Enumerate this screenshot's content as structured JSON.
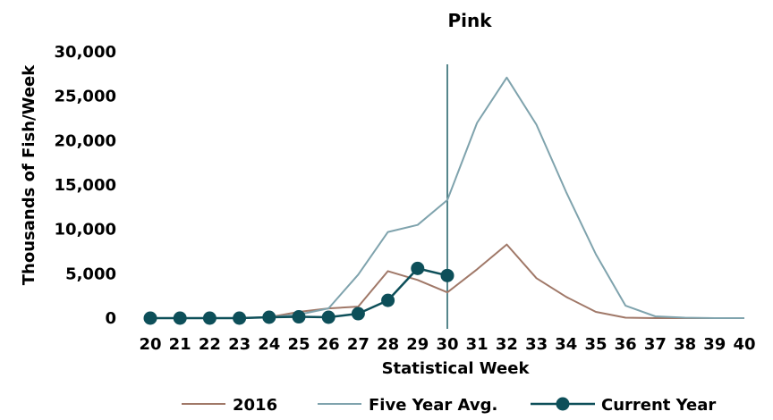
{
  "chart_data": {
    "type": "line",
    "title": "Pink",
    "xlabel": "Statistical Week",
    "ylabel": "Thousands of Fish/Week",
    "x": [
      20,
      21,
      22,
      23,
      24,
      25,
      26,
      27,
      28,
      29,
      30,
      31,
      32,
      33,
      34,
      35,
      36,
      37,
      38,
      39,
      40
    ],
    "ylim": [
      0,
      30000
    ],
    "yticks": [
      "0",
      "5,000",
      "10,000",
      "15,000",
      "20,000",
      "25,000",
      "30,000"
    ],
    "grid": false,
    "legend_position": "bottom",
    "marker_line_week": 30,
    "series": [
      {
        "name": "2016",
        "color": "#a07868",
        "values": [
          0,
          0,
          0,
          0,
          100,
          700,
          1100,
          1300,
          5300,
          4300,
          2900,
          5500,
          8300,
          4500,
          2400,
          700,
          50,
          0,
          0,
          0,
          0
        ]
      },
      {
        "name": "Five Year Avg.",
        "color": "#7fa3ad",
        "values": [
          0,
          0,
          0,
          0,
          100,
          400,
          1100,
          4900,
          9700,
          10500,
          13300,
          22000,
          27100,
          21800,
          14200,
          7200,
          1400,
          200,
          50,
          0,
          0
        ]
      },
      {
        "name": "Current Year",
        "color": "#0d4f59",
        "marker": "circle",
        "values": [
          0,
          0,
          0,
          0,
          100,
          150,
          100,
          500,
          2000,
          5600,
          4800,
          null,
          null,
          null,
          null,
          null,
          null,
          null,
          null,
          null,
          null
        ]
      }
    ]
  }
}
